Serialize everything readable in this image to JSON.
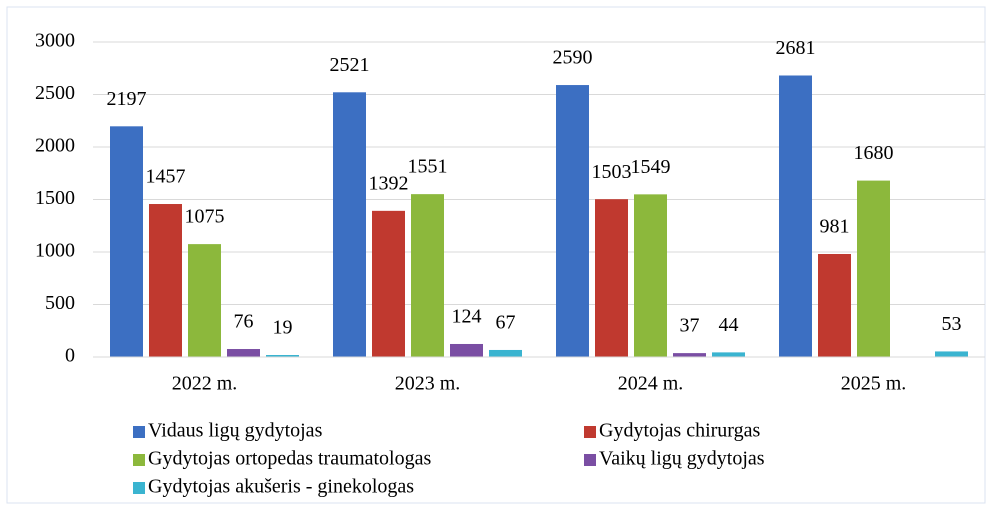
{
  "chart_data": {
    "type": "bar",
    "categories": [
      "2022 m.",
      "2023 m.",
      "2024 m.",
      "2025 m."
    ],
    "series": [
      {
        "name": "Vidaus ligų gydytojas",
        "color": "#3c6fc2",
        "values": [
          2197,
          2521,
          2590,
          2681
        ]
      },
      {
        "name": "Gydytojas chirurgas",
        "color": "#c0392f",
        "values": [
          1457,
          1392,
          1503,
          981
        ]
      },
      {
        "name": "Gydytojas ortopedas traumatologas",
        "color": "#8cb83c",
        "values": [
          1075,
          1551,
          1549,
          1680
        ]
      },
      {
        "name": "Vaikų ligų gydytojas",
        "color": "#7a4ea3",
        "values": [
          76,
          124,
          37,
          null
        ]
      },
      {
        "name": "Gydytojas akušeris - ginekologas",
        "color": "#3ab4d0",
        "values": [
          19,
          67,
          44,
          53
        ]
      }
    ],
    "ylim": [
      0,
      3000
    ],
    "yticks": [
      0,
      500,
      1000,
      1500,
      2000,
      2500,
      3000
    ],
    "grid": true,
    "legend": "bottom"
  }
}
